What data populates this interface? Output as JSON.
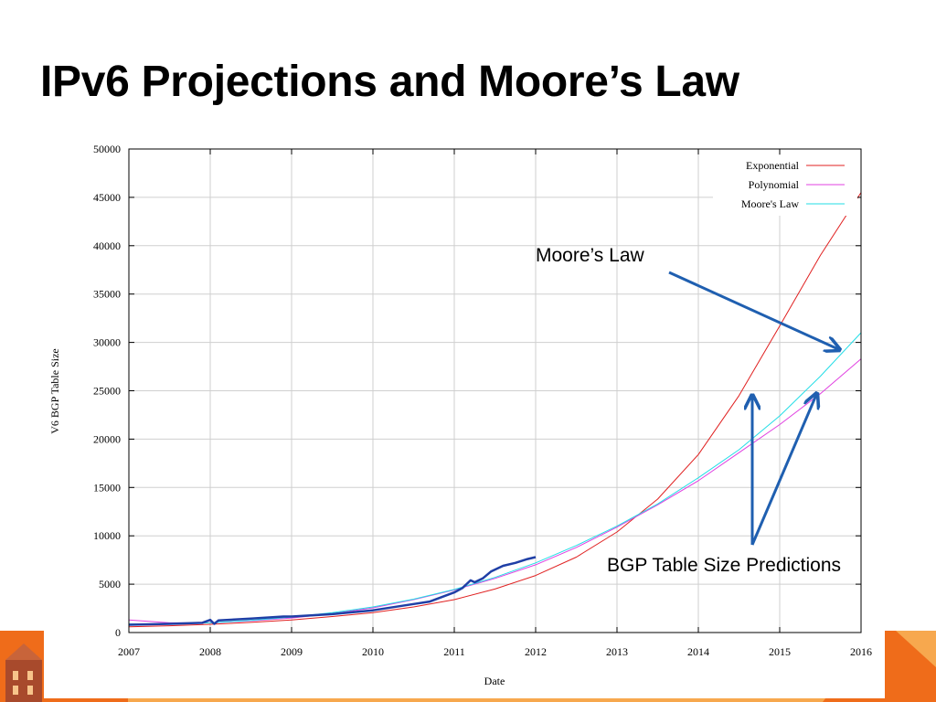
{
  "slide": {
    "title": "IPv6 Projections and Moore’s Law"
  },
  "chart_data": {
    "type": "line",
    "xlabel": "Date",
    "ylabel": "V6 BGP Table Size",
    "xlim": [
      2007,
      2016
    ],
    "ylim": [
      0,
      50000
    ],
    "x_ticks": [
      "2007",
      "2008",
      "2009",
      "2010",
      "2011",
      "2012",
      "2013",
      "2014",
      "2015",
      "2016"
    ],
    "y_ticks": [
      "0",
      "5000",
      "10000",
      "15000",
      "20000",
      "25000",
      "30000",
      "35000",
      "40000",
      "45000",
      "50000"
    ],
    "grid": true,
    "legend_position": "top-right",
    "series": [
      {
        "name": "Exponential",
        "color": "#e02020",
        "x": [
          2007,
          2007.5,
          2008,
          2008.5,
          2009,
          2009.5,
          2010,
          2010.5,
          2011,
          2011.5,
          2012,
          2012.5,
          2013,
          2013.5,
          2014,
          2014.5,
          2015,
          2015.5,
          2016
        ],
        "values": [
          600,
          700,
          850,
          1050,
          1300,
          1650,
          2050,
          2650,
          3400,
          4500,
          5900,
          7800,
          10400,
          13800,
          18400,
          24500,
          31700,
          39000,
          45500
        ]
      },
      {
        "name": "Polynomial",
        "color": "#e040e0",
        "x": [
          2007,
          2007.5,
          2008,
          2008.5,
          2009,
          2009.5,
          2010,
          2010.5,
          2011,
          2011.5,
          2012,
          2012.5,
          2013,
          2013.5,
          2014,
          2014.5,
          2015,
          2015.5,
          2016
        ],
        "values": [
          1300,
          1000,
          1000,
          1200,
          1500,
          1950,
          2550,
          3400,
          4400,
          5600,
          7000,
          8800,
          10900,
          13200,
          15700,
          18600,
          21500,
          24700,
          28300
        ]
      },
      {
        "name": "Moore's Law",
        "color": "#22dde6",
        "x": [
          2007,
          2007.5,
          2008,
          2008.5,
          2009,
          2009.5,
          2010,
          2010.5,
          2011,
          2011.5,
          2012,
          2012.5,
          2013,
          2013.5,
          2014,
          2014.5,
          2015,
          2015.5,
          2016
        ],
        "values": [
          900,
          900,
          1000,
          1250,
          1600,
          2050,
          2650,
          3450,
          4450,
          5700,
          7200,
          9000,
          11000,
          13300,
          16000,
          18900,
          22400,
          26500,
          31000
        ]
      },
      {
        "name": "",
        "color": "#1f3fa6",
        "x": [
          2007.0,
          2007.5,
          2007.9,
          2008.0,
          2008.05,
          2008.1,
          2008.5,
          2008.9,
          2009.0,
          2009.5,
          2010.0,
          2010.5,
          2010.7,
          2011.0,
          2011.1,
          2011.2,
          2011.25,
          2011.35,
          2011.45,
          2011.6,
          2011.75,
          2011.9,
          2012.0
        ],
        "values": [
          800,
          900,
          1000,
          1300,
          900,
          1250,
          1450,
          1650,
          1650,
          1900,
          2300,
          2950,
          3200,
          4150,
          4600,
          5400,
          5200,
          5600,
          6300,
          6900,
          7200,
          7600,
          7800
        ]
      }
    ]
  },
  "annotations": {
    "moores_law_label": "Moore’s Law",
    "predictions_label": "BGP Table Size Predictions",
    "arrow_color": "#1f5fb0"
  },
  "footer_colors": {
    "orange_dark": "#ef6c1a",
    "orange_light": "#f7a84e",
    "brown": "#a84a2c"
  }
}
